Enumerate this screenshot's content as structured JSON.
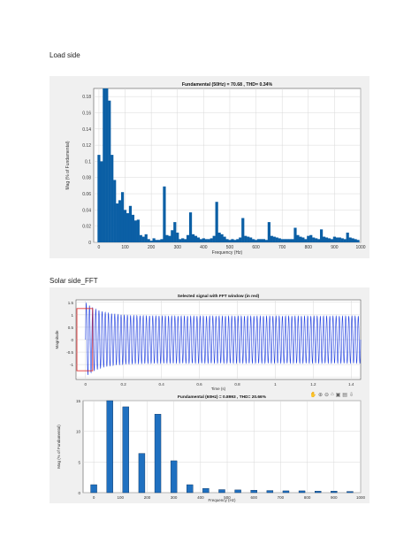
{
  "doc": {
    "section1_caption": "Load side",
    "section2_caption": "Solar side_FFT"
  },
  "chart_data": [
    {
      "type": "bar",
      "title": "Fundamental (50Hz) = 70.68 , THD= 0.34%",
      "xlabel": "Frequency (Hz)",
      "ylabel": "Mag (% of Fundamental)",
      "xlim": [
        -20,
        1000
      ],
      "ylim": [
        0,
        0.19
      ],
      "xticks": [
        0,
        100,
        200,
        300,
        400,
        500,
        600,
        700,
        800,
        900,
        1000
      ],
      "yticks": [
        0,
        0.02,
        0.04,
        0.06,
        0.08,
        0.1,
        0.12,
        0.14,
        0.16,
        0.18
      ],
      "ytick_labels": [
        "0",
        "0.02",
        "0.04",
        "0.06",
        "0.08",
        "0.1",
        "0.12",
        "0.14",
        "0.16",
        "0.18"
      ],
      "grid": true,
      "color": "#0b5fa5",
      "x": [
        0,
        10,
        20,
        30,
        40,
        50,
        60,
        70,
        80,
        90,
        100,
        110,
        120,
        130,
        140,
        150,
        160,
        170,
        180,
        190,
        200,
        210,
        220,
        230,
        240,
        250,
        260,
        270,
        280,
        290,
        300,
        310,
        320,
        330,
        340,
        350,
        360,
        370,
        380,
        390,
        400,
        410,
        420,
        430,
        440,
        450,
        460,
        470,
        480,
        490,
        500,
        510,
        520,
        530,
        540,
        550,
        560,
        570,
        580,
        590,
        600,
        610,
        620,
        630,
        640,
        650,
        660,
        670,
        680,
        690,
        700,
        710,
        720,
        730,
        740,
        750,
        760,
        770,
        780,
        790,
        800,
        810,
        820,
        830,
        840,
        850,
        860,
        870,
        880,
        890,
        900,
        910,
        920,
        930,
        940,
        950,
        960,
        970,
        980,
        990
      ],
      "values": [
        0.108,
        0.1,
        0.19,
        0.19,
        0.175,
        0.108,
        0.077,
        0.048,
        0.052,
        0.062,
        0.04,
        0.036,
        0.045,
        0.034,
        0.027,
        0.028,
        0.009,
        0.007,
        0.01,
        0.004,
        0.002,
        0.005,
        0.003,
        0.003,
        0.004,
        0.069,
        0.009,
        0.008,
        0.015,
        0.025,
        0.012,
        0.004,
        0.005,
        0.004,
        0.009,
        0.037,
        0.01,
        0.008,
        0.006,
        0.004,
        0.005,
        0.004,
        0.004,
        0.005,
        0.008,
        0.05,
        0.012,
        0.01,
        0.007,
        0.004,
        0.003,
        0.004,
        0.003,
        0.004,
        0.006,
        0.03,
        0.008,
        0.007,
        0.006,
        0.004,
        0.003,
        0.004,
        0.004,
        0.004,
        0.003,
        0.025,
        0.008,
        0.007,
        0.006,
        0.005,
        0.004,
        0.004,
        0.004,
        0.004,
        0.004,
        0.018,
        0.009,
        0.007,
        0.006,
        0.004,
        0.008,
        0.009,
        0.006,
        0.005,
        0.004,
        0.016,
        0.007,
        0.006,
        0.005,
        0.004,
        0.007,
        0.006,
        0.006,
        0.005,
        0.004,
        0.012,
        0.006,
        0.005,
        0.004,
        0.003
      ]
    },
    {
      "type": "line",
      "title": "Selected signal with FFT window (in red)",
      "xlabel": "Time (s)",
      "ylabel": "Magnitude",
      "xlim": [
        -0.05,
        1.45
      ],
      "ylim": [
        -1.6,
        1.6
      ],
      "xticks": [
        0,
        0.2,
        0.4,
        0.6,
        0.8,
        1,
        1.2,
        1.4
      ],
      "yticks": [
        -1.5,
        -1,
        -0.5,
        0,
        0.5,
        1,
        1.5
      ],
      "ytick_labels": [
        "",
        "-1",
        "-0.5",
        "0",
        "0.5",
        "1",
        "1.5"
      ],
      "grid": true,
      "signal": {
        "frequency_hz": 60,
        "steady_amplitude": 0.95,
        "transient_amplitude": 1.5,
        "transient_decay_s": 0.08,
        "color": "#1f3fe0"
      },
      "fft_window": {
        "x_range": [
          -0.05,
          0.033
        ],
        "color": "#e02020"
      }
    },
    {
      "type": "bar",
      "title": "Fundamental (60Hz) = 0.8993 , THD= 20.66%",
      "xlabel": "Frequency (Hz)",
      "ylabel": "Mag (% of Fundamental)",
      "xlim": [
        -40,
        1000
      ],
      "ylim": [
        0,
        15
      ],
      "xticks": [
        0,
        100,
        200,
        300,
        400,
        500,
        600,
        700,
        800,
        900,
        1000
      ],
      "yticks": [
        0,
        5,
        10,
        15
      ],
      "ytick_labels": [
        "0",
        "5",
        "10",
        "15"
      ],
      "grid": true,
      "color": "#1f70c0",
      "x": [
        0,
        60,
        120,
        180,
        240,
        300,
        360,
        420,
        480,
        540,
        600,
        660,
        720,
        780,
        840,
        900,
        960
      ],
      "values": [
        1.3,
        15.5,
        14.0,
        6.4,
        12.8,
        5.2,
        1.3,
        0.7,
        0.5,
        0.45,
        0.4,
        0.35,
        0.3,
        0.3,
        0.25,
        0.25,
        0.2
      ]
    }
  ]
}
